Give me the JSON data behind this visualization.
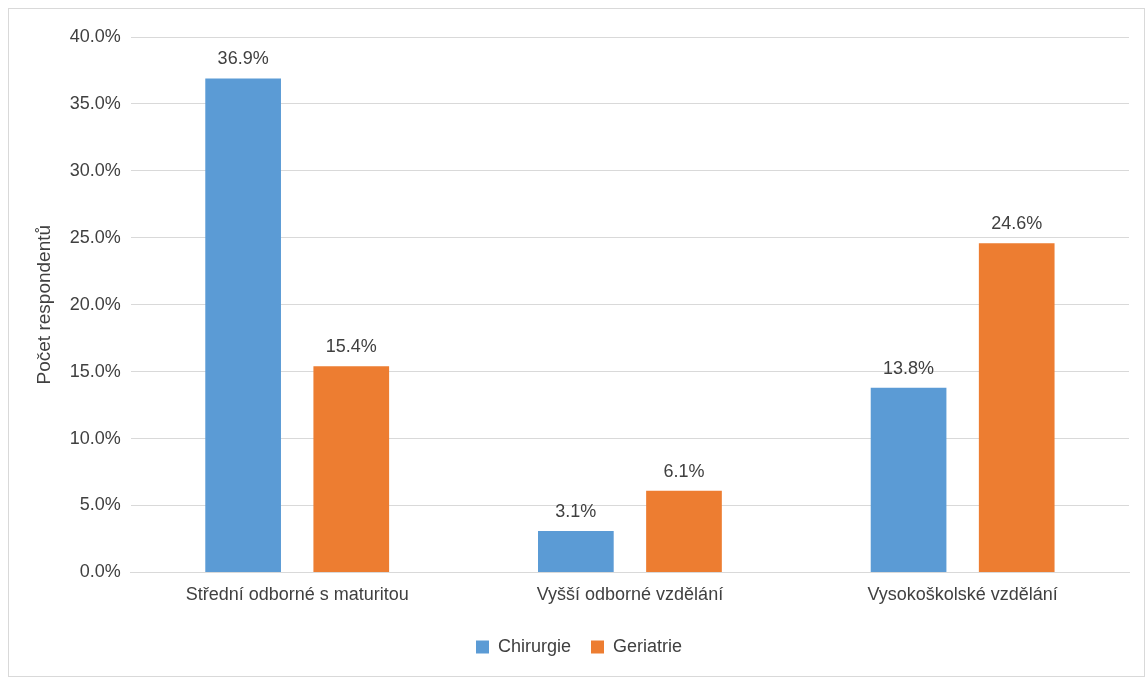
{
  "chart_data": {
    "type": "bar",
    "ylabel": "Počet respondentů",
    "categories": [
      "Střední odborné s maturitou",
      "Vyšší odborné vzdělání",
      "Vysokoškolské vzdělání"
    ],
    "series": [
      {
        "name": "Chirurgie",
        "color": "#5b9bd5",
        "values": [
          36.9,
          3.1,
          13.8
        ],
        "value_labels": [
          "36.9%",
          "3.1%",
          "13.8%"
        ]
      },
      {
        "name": "Geriatrie",
        "color": "#ed7d31",
        "values": [
          15.4,
          6.1,
          24.6
        ],
        "value_labels": [
          "15.4%",
          "6.1%",
          "24.6%"
        ]
      }
    ],
    "ylim": [
      0,
      40
    ],
    "yticks": [
      {
        "value": 0,
        "label": "0.0%"
      },
      {
        "value": 5,
        "label": "5.0%"
      },
      {
        "value": 10,
        "label": "10.0%"
      },
      {
        "value": 15,
        "label": "15.0%"
      },
      {
        "value": 20,
        "label": "20.0%"
      },
      {
        "value": 25,
        "label": "25.0%"
      },
      {
        "value": 30,
        "label": "30.0%"
      },
      {
        "value": 35,
        "label": "35.0%"
      },
      {
        "value": 40,
        "label": "40.0%"
      }
    ],
    "grid": "y",
    "legend": "bottom"
  }
}
